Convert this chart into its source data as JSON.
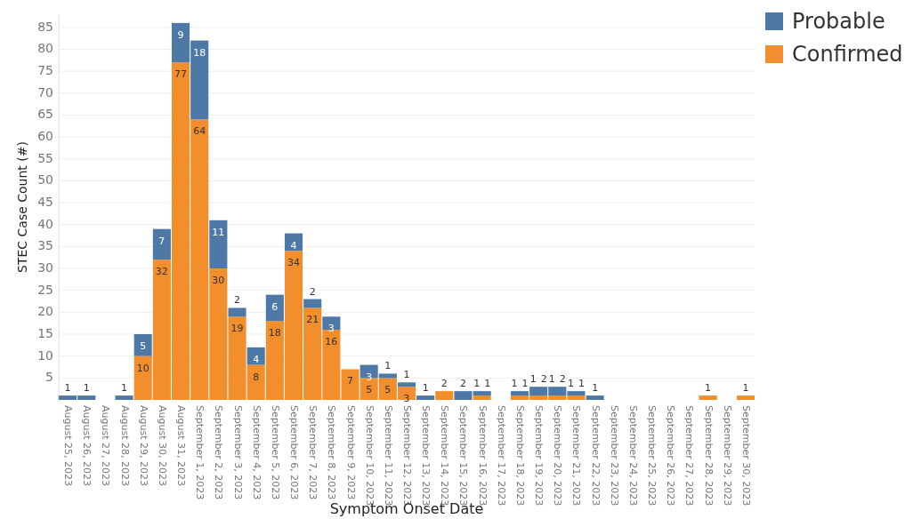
{
  "chart_data": {
    "type": "bar",
    "stacked": true,
    "xlabel": "Symptom Onset Date",
    "ylabel": "STEC Case Count (#)",
    "categories": [
      "August 25, 2023",
      "August 26, 2023",
      "August 27, 2023",
      "August 28, 2023",
      "August 29, 2023",
      "August 30, 2023",
      "August 31, 2023",
      "September 1, 2023",
      "September 2, 2023",
      "September 3, 2023",
      "September 4, 2023",
      "September 5, 2023",
      "September 6, 2023",
      "September 7, 2023",
      "September 8, 2023",
      "September 9, 2023",
      "September 10, 2023",
      "September 11, 2023",
      "September 12, 2023",
      "September 13, 2023",
      "September 14, 2023",
      "September 15, 2023",
      "September 16, 2023",
      "September 17, 2023",
      "September 18, 2023",
      "September 19, 2023",
      "September 20, 2023",
      "September 21, 2023",
      "September 22, 2023",
      "September 23, 2023",
      "September 24, 2023",
      "September 25, 2023",
      "September 26, 2023",
      "September 27, 2023",
      "September 28, 2023",
      "September 29, 2023",
      "September 30, 2023"
    ],
    "series": [
      {
        "name": "Confirmed",
        "color": "#f28e2b",
        "values": [
          null,
          null,
          null,
          null,
          10,
          32,
          77,
          64,
          30,
          19,
          8,
          18,
          34,
          21,
          16,
          7,
          5,
          5,
          3,
          null,
          2,
          null,
          1,
          null,
          1,
          1,
          1,
          1,
          null,
          null,
          null,
          null,
          null,
          null,
          1,
          null,
          1
        ]
      },
      {
        "name": "Probable",
        "color": "#4e79a7",
        "values": [
          1,
          1,
          null,
          1,
          5,
          7,
          9,
          18,
          11,
          2,
          4,
          6,
          4,
          2,
          3,
          null,
          3,
          1,
          1,
          1,
          null,
          2,
          1,
          null,
          1,
          2,
          2,
          1,
          1,
          null,
          null,
          null,
          null,
          null,
          null,
          null,
          null
        ]
      }
    ],
    "ylim": [
      0,
      88
    ],
    "yticks": [
      5,
      10,
      15,
      20,
      25,
      30,
      35,
      40,
      45,
      50,
      55,
      60,
      65,
      70,
      75,
      80,
      85
    ],
    "grid": "y",
    "legend": "top right",
    "data_labels": true
  }
}
